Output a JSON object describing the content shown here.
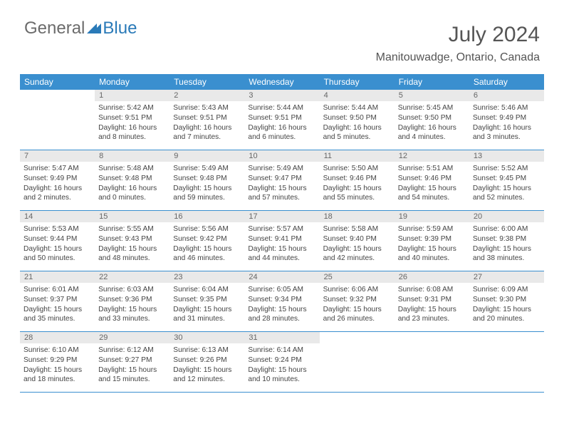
{
  "logo": {
    "part1": "General",
    "part2": "Blue"
  },
  "header": {
    "title": "July 2024",
    "location": "Manitouwadge, Ontario, Canada"
  },
  "colors": {
    "headerBlue": "#3a8fcf",
    "dayNumBg": "#e9e9e9",
    "textGray": "#555555",
    "logoGray": "#6b6b6b",
    "logoBlue": "#2a7ab8",
    "bodyText": "#444444",
    "background": "#ffffff"
  },
  "dayNames": [
    "Sunday",
    "Monday",
    "Tuesday",
    "Wednesday",
    "Thursday",
    "Friday",
    "Saturday"
  ],
  "weeks": [
    [
      null,
      {
        "n": "1",
        "sr": "Sunrise: 5:42 AM",
        "ss": "Sunset: 9:51 PM",
        "d1": "Daylight: 16 hours",
        "d2": "and 8 minutes."
      },
      {
        "n": "2",
        "sr": "Sunrise: 5:43 AM",
        "ss": "Sunset: 9:51 PM",
        "d1": "Daylight: 16 hours",
        "d2": "and 7 minutes."
      },
      {
        "n": "3",
        "sr": "Sunrise: 5:44 AM",
        "ss": "Sunset: 9:51 PM",
        "d1": "Daylight: 16 hours",
        "d2": "and 6 minutes."
      },
      {
        "n": "4",
        "sr": "Sunrise: 5:44 AM",
        "ss": "Sunset: 9:50 PM",
        "d1": "Daylight: 16 hours",
        "d2": "and 5 minutes."
      },
      {
        "n": "5",
        "sr": "Sunrise: 5:45 AM",
        "ss": "Sunset: 9:50 PM",
        "d1": "Daylight: 16 hours",
        "d2": "and 4 minutes."
      },
      {
        "n": "6",
        "sr": "Sunrise: 5:46 AM",
        "ss": "Sunset: 9:49 PM",
        "d1": "Daylight: 16 hours",
        "d2": "and 3 minutes."
      }
    ],
    [
      {
        "n": "7",
        "sr": "Sunrise: 5:47 AM",
        "ss": "Sunset: 9:49 PM",
        "d1": "Daylight: 16 hours",
        "d2": "and 2 minutes."
      },
      {
        "n": "8",
        "sr": "Sunrise: 5:48 AM",
        "ss": "Sunset: 9:48 PM",
        "d1": "Daylight: 16 hours",
        "d2": "and 0 minutes."
      },
      {
        "n": "9",
        "sr": "Sunrise: 5:49 AM",
        "ss": "Sunset: 9:48 PM",
        "d1": "Daylight: 15 hours",
        "d2": "and 59 minutes."
      },
      {
        "n": "10",
        "sr": "Sunrise: 5:49 AM",
        "ss": "Sunset: 9:47 PM",
        "d1": "Daylight: 15 hours",
        "d2": "and 57 minutes."
      },
      {
        "n": "11",
        "sr": "Sunrise: 5:50 AM",
        "ss": "Sunset: 9:46 PM",
        "d1": "Daylight: 15 hours",
        "d2": "and 55 minutes."
      },
      {
        "n": "12",
        "sr": "Sunrise: 5:51 AM",
        "ss": "Sunset: 9:46 PM",
        "d1": "Daylight: 15 hours",
        "d2": "and 54 minutes."
      },
      {
        "n": "13",
        "sr": "Sunrise: 5:52 AM",
        "ss": "Sunset: 9:45 PM",
        "d1": "Daylight: 15 hours",
        "d2": "and 52 minutes."
      }
    ],
    [
      {
        "n": "14",
        "sr": "Sunrise: 5:53 AM",
        "ss": "Sunset: 9:44 PM",
        "d1": "Daylight: 15 hours",
        "d2": "and 50 minutes."
      },
      {
        "n": "15",
        "sr": "Sunrise: 5:55 AM",
        "ss": "Sunset: 9:43 PM",
        "d1": "Daylight: 15 hours",
        "d2": "and 48 minutes."
      },
      {
        "n": "16",
        "sr": "Sunrise: 5:56 AM",
        "ss": "Sunset: 9:42 PM",
        "d1": "Daylight: 15 hours",
        "d2": "and 46 minutes."
      },
      {
        "n": "17",
        "sr": "Sunrise: 5:57 AM",
        "ss": "Sunset: 9:41 PM",
        "d1": "Daylight: 15 hours",
        "d2": "and 44 minutes."
      },
      {
        "n": "18",
        "sr": "Sunrise: 5:58 AM",
        "ss": "Sunset: 9:40 PM",
        "d1": "Daylight: 15 hours",
        "d2": "and 42 minutes."
      },
      {
        "n": "19",
        "sr": "Sunrise: 5:59 AM",
        "ss": "Sunset: 9:39 PM",
        "d1": "Daylight: 15 hours",
        "d2": "and 40 minutes."
      },
      {
        "n": "20",
        "sr": "Sunrise: 6:00 AM",
        "ss": "Sunset: 9:38 PM",
        "d1": "Daylight: 15 hours",
        "d2": "and 38 minutes."
      }
    ],
    [
      {
        "n": "21",
        "sr": "Sunrise: 6:01 AM",
        "ss": "Sunset: 9:37 PM",
        "d1": "Daylight: 15 hours",
        "d2": "and 35 minutes."
      },
      {
        "n": "22",
        "sr": "Sunrise: 6:03 AM",
        "ss": "Sunset: 9:36 PM",
        "d1": "Daylight: 15 hours",
        "d2": "and 33 minutes."
      },
      {
        "n": "23",
        "sr": "Sunrise: 6:04 AM",
        "ss": "Sunset: 9:35 PM",
        "d1": "Daylight: 15 hours",
        "d2": "and 31 minutes."
      },
      {
        "n": "24",
        "sr": "Sunrise: 6:05 AM",
        "ss": "Sunset: 9:34 PM",
        "d1": "Daylight: 15 hours",
        "d2": "and 28 minutes."
      },
      {
        "n": "25",
        "sr": "Sunrise: 6:06 AM",
        "ss": "Sunset: 9:32 PM",
        "d1": "Daylight: 15 hours",
        "d2": "and 26 minutes."
      },
      {
        "n": "26",
        "sr": "Sunrise: 6:08 AM",
        "ss": "Sunset: 9:31 PM",
        "d1": "Daylight: 15 hours",
        "d2": "and 23 minutes."
      },
      {
        "n": "27",
        "sr": "Sunrise: 6:09 AM",
        "ss": "Sunset: 9:30 PM",
        "d1": "Daylight: 15 hours",
        "d2": "and 20 minutes."
      }
    ],
    [
      {
        "n": "28",
        "sr": "Sunrise: 6:10 AM",
        "ss": "Sunset: 9:29 PM",
        "d1": "Daylight: 15 hours",
        "d2": "and 18 minutes."
      },
      {
        "n": "29",
        "sr": "Sunrise: 6:12 AM",
        "ss": "Sunset: 9:27 PM",
        "d1": "Daylight: 15 hours",
        "d2": "and 15 minutes."
      },
      {
        "n": "30",
        "sr": "Sunrise: 6:13 AM",
        "ss": "Sunset: 9:26 PM",
        "d1": "Daylight: 15 hours",
        "d2": "and 12 minutes."
      },
      {
        "n": "31",
        "sr": "Sunrise: 6:14 AM",
        "ss": "Sunset: 9:24 PM",
        "d1": "Daylight: 15 hours",
        "d2": "and 10 minutes."
      },
      null,
      null,
      null
    ]
  ]
}
